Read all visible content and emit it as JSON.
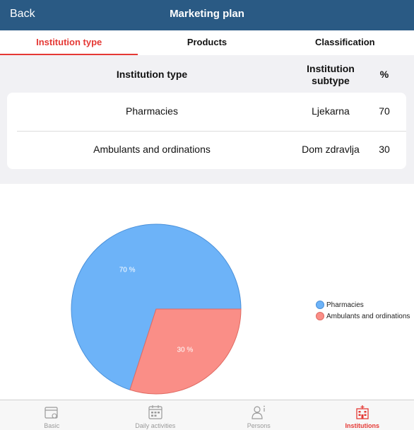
{
  "nav": {
    "back_label": "Back",
    "title": "Marketing plan"
  },
  "tabs": [
    {
      "label": "Institution type",
      "active": true
    },
    {
      "label": "Products",
      "active": false
    },
    {
      "label": "Classification",
      "active": false
    }
  ],
  "table": {
    "headers": {
      "type": "Institution type",
      "subtype": "Institution\nsubtype",
      "percent": "%"
    },
    "rows": [
      {
        "type": "Pharmacies",
        "subtype": "Ljekarna",
        "percent": "70"
      },
      {
        "type": "Ambulants and ordinations",
        "subtype": "Dom zdravlja",
        "percent": "30"
      }
    ]
  },
  "chart_data": {
    "type": "pie",
    "categories": [
      "Pharmacies",
      "Ambulants and ordinations"
    ],
    "values": [
      70,
      30
    ],
    "slice_labels": [
      "70 %",
      "30 %"
    ],
    "colors": [
      "#6db3f8",
      "#fa8e87"
    ],
    "legend_position": "right"
  },
  "tabbar": [
    {
      "label": "Basic",
      "icon": "basic-icon",
      "active": false
    },
    {
      "label": "Daily activities",
      "icon": "calendar-icon",
      "active": false
    },
    {
      "label": "Persons",
      "icon": "person-icon",
      "active": false
    },
    {
      "label": "Institutions",
      "icon": "hospital-icon",
      "active": true
    }
  ],
  "colors": {
    "nav": "#2a5a84",
    "accent": "#e53935"
  }
}
